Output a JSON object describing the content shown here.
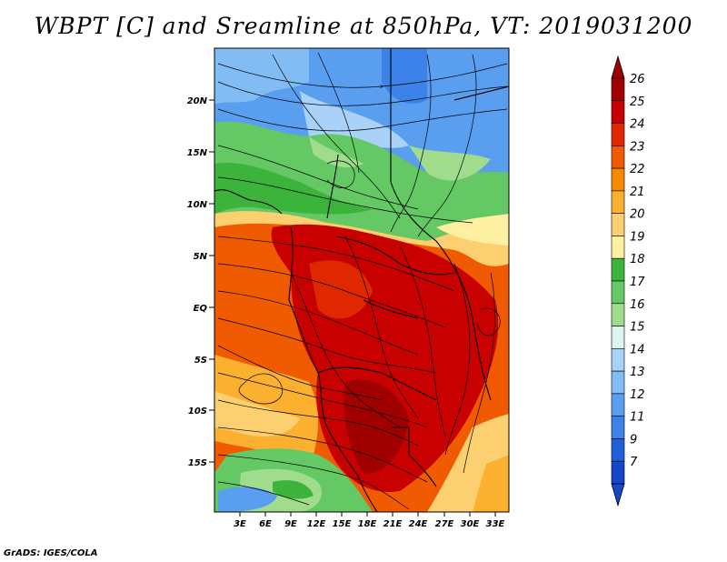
{
  "title": "WBPT [C] and Sreamline at 850hPa, VT: 2019031200",
  "credit": "GrADS: IGES/COLA",
  "map": {
    "lat_labels": [
      "20N",
      "15N",
      "10N",
      "5N",
      "EQ",
      "5S",
      "10S",
      "15S"
    ],
    "lon_labels": [
      "3E",
      "6E",
      "9E",
      "12E",
      "15E",
      "18E",
      "21E",
      "24E",
      "27E",
      "30E",
      "33E"
    ]
  },
  "colorbar": {
    "labels": [
      "26",
      "25",
      "24",
      "23",
      "22",
      "21",
      "20",
      "19",
      "18",
      "17",
      "16",
      "15",
      "14",
      "13",
      "12",
      "11",
      "9",
      "7"
    ],
    "colors": [
      "#a00000",
      "#c80000",
      "#e02800",
      "#f05a00",
      "#f88a00",
      "#fcb030",
      "#fcd070",
      "#fef0a0",
      "#3cb43c",
      "#64c864",
      "#a0dc8c",
      "#dcf4f0",
      "#a8d2f8",
      "#82bcf4",
      "#5a9ef0",
      "#3c82e8",
      "#2060d8",
      "#1448c8"
    ]
  }
}
